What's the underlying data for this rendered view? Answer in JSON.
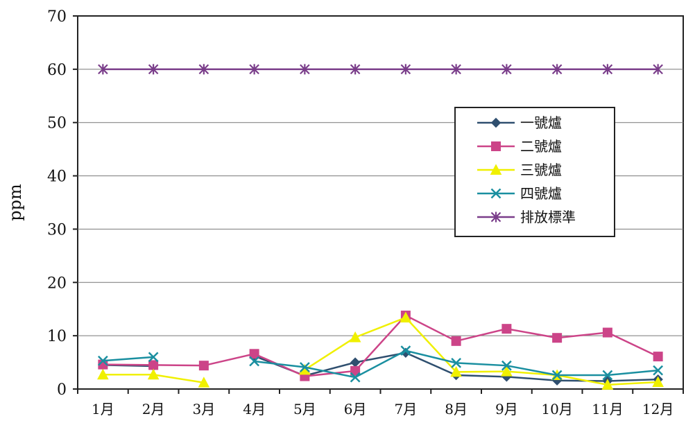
{
  "chart_data": {
    "type": "line",
    "title": "",
    "xlabel": "",
    "ylabel": "ppm",
    "ylim": [
      0,
      70
    ],
    "yticks": [
      0,
      10,
      20,
      30,
      40,
      50,
      60,
      70
    ],
    "grid": "horizontal",
    "legend_position": "right",
    "categories": [
      "1月",
      "2月",
      "3月",
      "4月",
      "5月",
      "6月",
      "7月",
      "8月",
      "9月",
      "10月",
      "11月",
      "12月"
    ],
    "series": [
      {
        "name": "一號爐",
        "color": "#2f4f6f",
        "marker": "diamond",
        "values": [
          4.5,
          4.3,
          null,
          6.2,
          2.5,
          5.0,
          6.8,
          2.6,
          2.3,
          1.6,
          1.5,
          1.8
        ]
      },
      {
        "name": "二號爐",
        "color": "#cc4488",
        "marker": "square",
        "values": [
          4.6,
          4.5,
          4.4,
          6.6,
          2.4,
          3.4,
          13.8,
          9.0,
          11.3,
          9.6,
          10.6,
          6.1
        ]
      },
      {
        "name": "三號爐",
        "color": "#f0f000",
        "marker": "triangle",
        "values": [
          2.7,
          2.7,
          1.2,
          null,
          3.6,
          9.7,
          13.4,
          3.2,
          3.3,
          2.6,
          0.8,
          1.3
        ]
      },
      {
        "name": "四號爐",
        "color": "#1a8fa0",
        "marker": "x",
        "values": [
          5.3,
          6.0,
          null,
          5.2,
          4.1,
          2.2,
          7.2,
          4.9,
          4.4,
          2.6,
          2.6,
          3.5
        ]
      },
      {
        "name": "排放標準",
        "color": "#7a3d8a",
        "marker": "star",
        "values": [
          60,
          60,
          60,
          60,
          60,
          60,
          60,
          60,
          60,
          60,
          60,
          60
        ]
      }
    ]
  }
}
